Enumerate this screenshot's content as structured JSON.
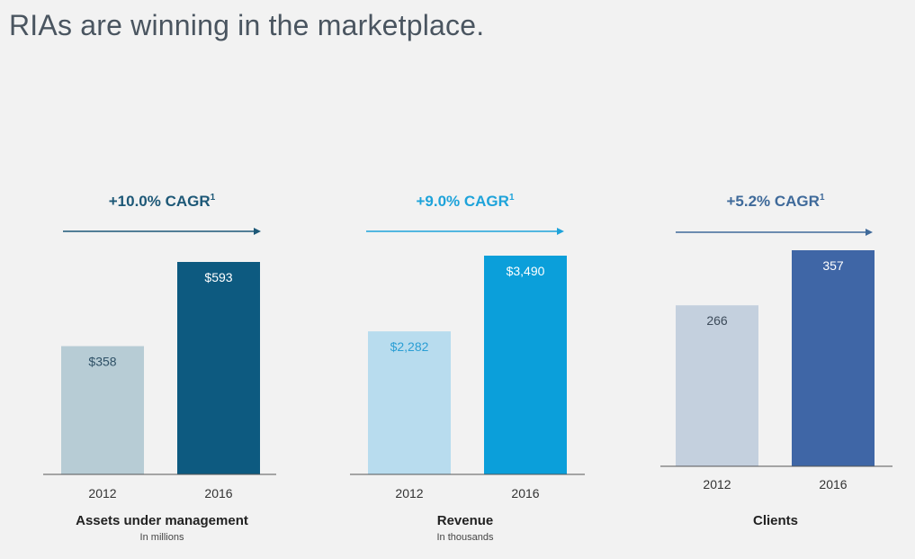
{
  "page": {
    "title": "RIAs are winning in the marketplace."
  },
  "chart_data": [
    {
      "type": "bar",
      "title": "Assets under management",
      "subtitle": "In millions",
      "cagr_label": "+10.0% CAGR",
      "cagr_superscript": "1",
      "categories": [
        "2012",
        "2016"
      ],
      "values": [
        358,
        593
      ],
      "value_labels": [
        "$358",
        "$593"
      ],
      "colors": {
        "accent": "#1d5877",
        "bars": [
          "#b7ccd5",
          "#0d5a80"
        ],
        "label_colors": [
          "#2e5066",
          "#ffffff"
        ]
      }
    },
    {
      "type": "bar",
      "title": "Revenue",
      "subtitle": "In thousands",
      "cagr_label": "+9.0% CAGR",
      "cagr_superscript": "1",
      "categories": [
        "2012",
        "2016"
      ],
      "values": [
        2282,
        3490
      ],
      "value_labels": [
        "$2,282",
        "$3,490"
      ],
      "colors": {
        "accent": "#1ea3da",
        "bars": [
          "#b8dcee",
          "#0b9fda"
        ],
        "label_colors": [
          "#2a9ed4",
          "#ffffff"
        ]
      }
    },
    {
      "type": "bar",
      "title": "Clients",
      "subtitle": "",
      "cagr_label": "+5.2% CAGR",
      "cagr_superscript": "1",
      "categories": [
        "2012",
        "2016"
      ],
      "values": [
        266,
        357
      ],
      "value_labels": [
        "266",
        "357"
      ],
      "colors": {
        "accent": "#3f6a9a",
        "bars": [
          "#c4d0de",
          "#3f66a6"
        ],
        "label_colors": [
          "#3d4b5a",
          "#ffffff"
        ]
      }
    }
  ]
}
